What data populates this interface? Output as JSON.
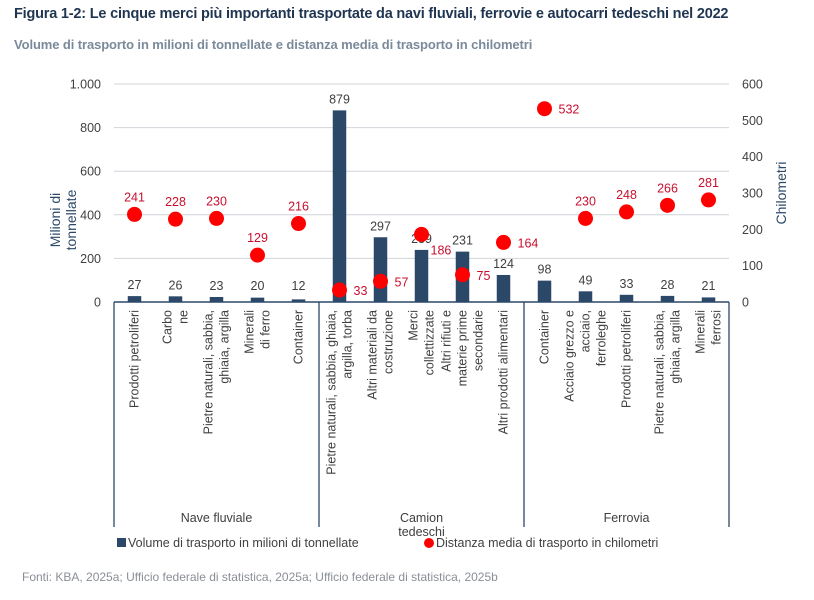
{
  "title": "Figura 1-2: Le cinque merci più importanti trasportate da navi fluviali, ferrovie e autocarri tedeschi nel 2022",
  "subtitle": "Volume di trasporto in milioni di tonnellate e distanza media di trasporto in chilometri",
  "source": "Fonti: KBA, 2025a; Ufficio federale di statistica, 2025a; Ufficio federale di statistica, 2025b",
  "colors": {
    "bar": "#2b4868",
    "dot": "#ff0000",
    "dot_label": "#c8102e",
    "value_label": "#404040",
    "axis_text": "#404040",
    "axis_title": "#2b4868",
    "grid": "#d0d4da",
    "axis_line": "#2b4868"
  },
  "chart_data": {
    "type": "bar",
    "title": "Figura 1-2: Le cinque merci più importanti trasportate da navi fluviali, ferrovie e autocarri tedeschi nel 2022",
    "subtitle": "Volume di trasporto in milioni di tonnellate e distanza media di trasporto in chilometri",
    "ylabel": "Milioni di tonnellate",
    "y2label": "Chilometri",
    "ylim": [
      0,
      1000
    ],
    "y2lim": [
      0,
      600
    ],
    "yticks": [
      0,
      200,
      400,
      600,
      800,
      1000
    ],
    "ytick_labels": [
      "0",
      "200",
      "400",
      "600",
      "800",
      "1.000"
    ],
    "y2ticks": [
      0,
      100,
      200,
      300,
      400,
      500,
      600
    ],
    "y2tick_labels": [
      "0",
      "100",
      "200",
      "300",
      "400",
      "500",
      "600"
    ],
    "grid": true,
    "legend_position": "bottom",
    "groups": [
      {
        "name": "Nave fluviale",
        "name_lines": [
          "Nave fluviale"
        ]
      },
      {
        "name": "Camion tedeschi",
        "name_lines": [
          "Camion",
          "tedeschi"
        ]
      },
      {
        "name": "Ferrovia",
        "name_lines": [
          "Ferrovia"
        ]
      }
    ],
    "categories": [
      {
        "group": 0,
        "label": "Prodotti petroliferi",
        "lines": [
          "Prodotti petroliferi"
        ]
      },
      {
        "group": 0,
        "label": "Carbone",
        "lines": [
          "Carbo",
          "ne"
        ]
      },
      {
        "group": 0,
        "label": "Pietre naturali, sabbia, ghiaia, argilla",
        "lines": [
          "Pietre naturali, sabbia,",
          "ghiaia, argilla"
        ]
      },
      {
        "group": 0,
        "label": "Minerali di ferro",
        "lines": [
          "Minerali",
          "di ferro"
        ]
      },
      {
        "group": 0,
        "label": "Container",
        "lines": [
          "Container"
        ]
      },
      {
        "group": 1,
        "label": "Pietre naturali, sabbia, ghiaia, argilla, torba",
        "lines": [
          "Pietre naturali, sabbia, ghiaia,",
          "argilla, torba"
        ]
      },
      {
        "group": 1,
        "label": "Altri materiali da costruzione",
        "lines": [
          "Altri materiali da",
          "costruzione"
        ]
      },
      {
        "group": 1,
        "label": "Merci collettizzate",
        "lines": [
          "Merci",
          "collettizzate"
        ]
      },
      {
        "group": 1,
        "label": "Altri rifiuti e materie prime secondarie",
        "lines": [
          "Altri rifiuti e",
          "materie prime",
          "secondarie"
        ]
      },
      {
        "group": 1,
        "label": "Altri prodotti alimentari",
        "lines": [
          "Altri prodotti alimentari"
        ]
      },
      {
        "group": 2,
        "label": "Container",
        "lines": [
          "Container"
        ]
      },
      {
        "group": 2,
        "label": "Acciaio grezzo e acciaio, ferroleghe",
        "lines": [
          "Acciaio grezzo e",
          "acciaio,",
          "ferroleghe"
        ]
      },
      {
        "group": 2,
        "label": "Prodotti petroliferi",
        "lines": [
          "Prodotti petroliferi"
        ]
      },
      {
        "group": 2,
        "label": "Pietre naturali, sabbia, ghiaia, argilla",
        "lines": [
          "Pietre naturali, sabbia,",
          "ghiaia, argilla"
        ]
      },
      {
        "group": 2,
        "label": "Minerali ferrosi",
        "lines": [
          "Minerali",
          "ferrosi"
        ]
      }
    ],
    "series": [
      {
        "name": "Volume di trasporto in milioni di tonnellate",
        "type": "bar",
        "axis": "left",
        "values": [
          27,
          26,
          23,
          20,
          12,
          879,
          297,
          239,
          231,
          124,
          98,
          49,
          33,
          28,
          21
        ]
      },
      {
        "name": "Distanza media di trasporto in chilometri",
        "type": "scatter",
        "axis": "right",
        "values": [
          241,
          228,
          230,
          129,
          216,
          33,
          57,
          186,
          75,
          164,
          532,
          230,
          248,
          266,
          281
        ]
      }
    ]
  }
}
